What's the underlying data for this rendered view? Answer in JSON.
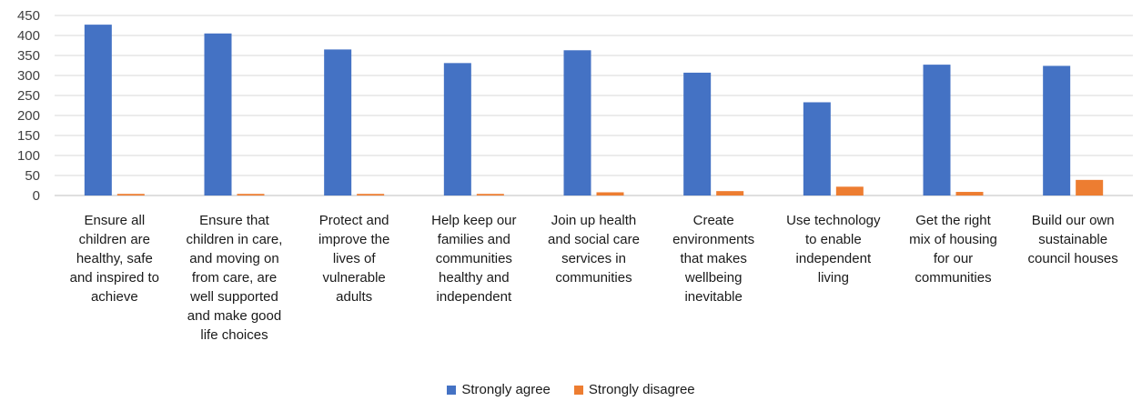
{
  "chart_data": {
    "type": "bar",
    "categories": [
      "Ensure all\nchildren are\nhealthy, safe\nand inspired to\nachieve",
      "Ensure that\nchildren in care,\nand moving on\nfrom care, are\nwell supported\nand make good\nlife choices",
      "Protect and\nimprove the\nlives of\nvulnerable\nadults",
      "Help keep our\nfamilies and\ncommunities\nhealthy and\nindependent",
      "Join up health\nand social care\nservices in\ncommunities",
      "Create\nenvironments\nthat makes\nwellbeing\ninevitable",
      "Use technology\nto enable\nindependent\nliving",
      "Get the right\nmix of housing\nfor our\ncommunities",
      "Build our own\nsustainable\ncouncil houses"
    ],
    "series": [
      {
        "name": "Strongly agree",
        "color": "#4472C4",
        "values": [
          427,
          405,
          365,
          331,
          363,
          307,
          233,
          327,
          324
        ]
      },
      {
        "name": "Strongly disagree",
        "color": "#ED7D31",
        "values": [
          4,
          4,
          4,
          4,
          8,
          11,
          22,
          9,
          39
        ]
      }
    ],
    "ylim": [
      0,
      450
    ],
    "yticks": [
      "0",
      "50",
      "100",
      "150",
      "200",
      "250",
      "300",
      "350",
      "400",
      "450"
    ],
    "title": "",
    "xlabel": "",
    "ylabel": "",
    "grid": true,
    "legend_position": "bottom"
  }
}
